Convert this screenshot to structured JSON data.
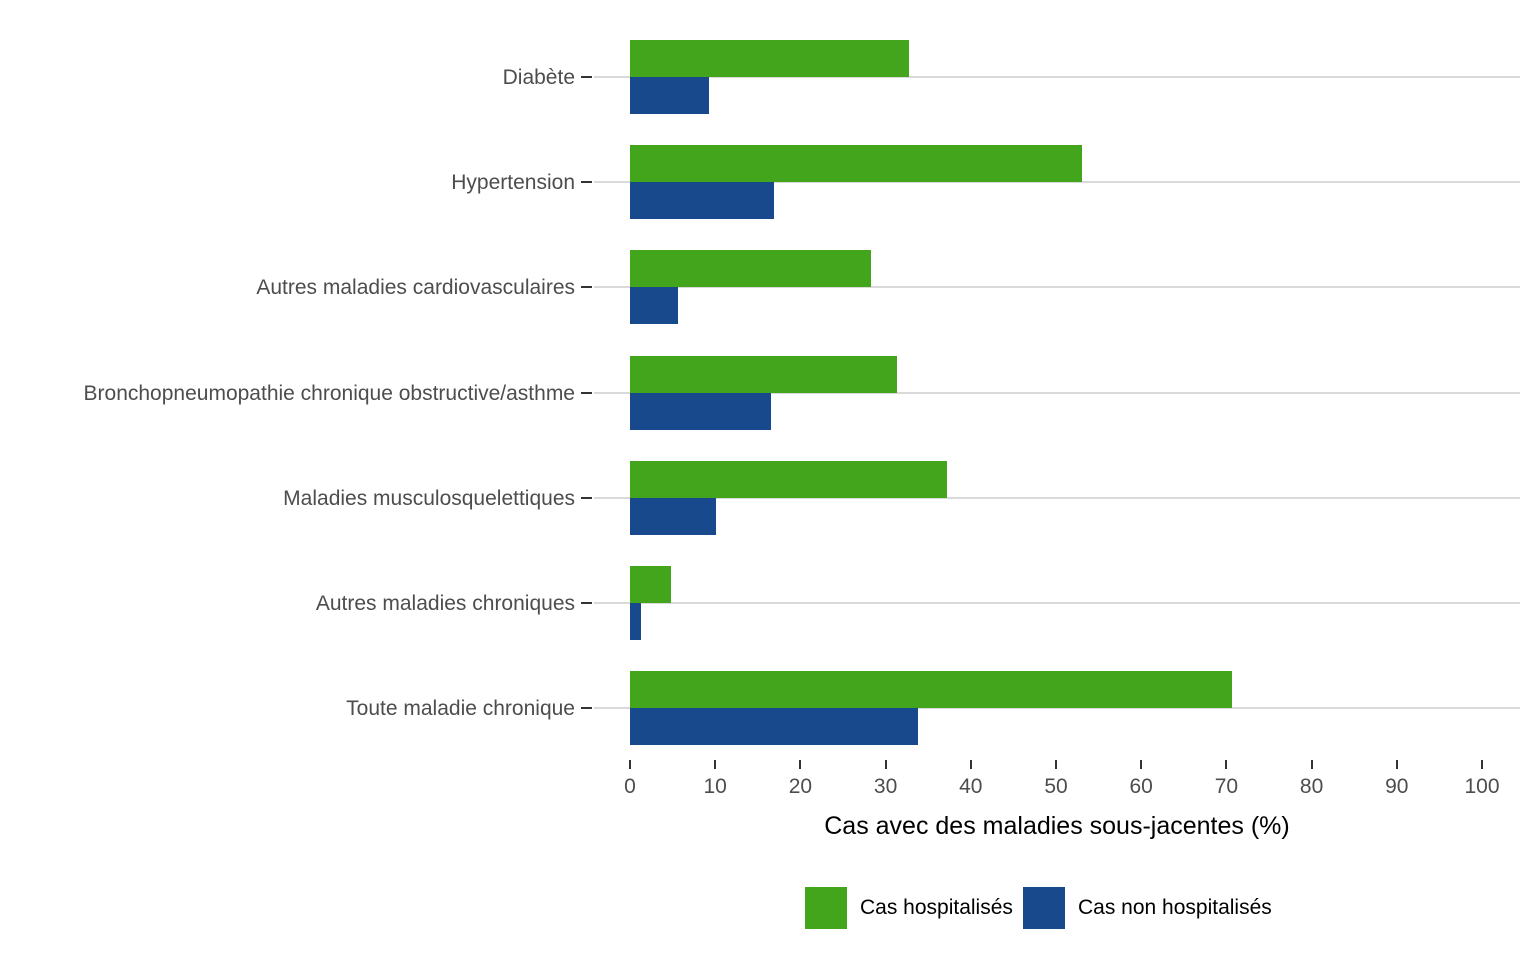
{
  "chart_data": {
    "type": "bar",
    "orientation": "horizontal",
    "title": "",
    "xlabel": "Cas avec des maladies sous-jacentes (%)",
    "ylabel": "",
    "xlim": [
      0,
      105
    ],
    "xticks": [
      0,
      10,
      20,
      30,
      40,
      50,
      60,
      70,
      80,
      90,
      100
    ],
    "grid": "horizontal gridline at each category center only",
    "legend_position": "bottom",
    "categories": [
      "Diabète",
      "Hypertension",
      "Autres maladies cardiovasculaires",
      "Bronchopneumopathie chronique obstructive/asthme",
      "Maladies musculosquelettiques",
      "Autres maladies chroniques",
      "Toute maladie chronique"
    ],
    "series": [
      {
        "name": "Cas hospitalisés",
        "color": "#43a51c",
        "values": [
          32.7,
          53.0,
          28.3,
          31.3,
          37.2,
          4.8,
          70.6
        ]
      },
      {
        "name": "Cas non hospitalisés",
        "color": "#17498c",
        "values": [
          9.3,
          16.9,
          5.6,
          16.6,
          10.1,
          1.3,
          33.8
        ]
      }
    ],
    "colors": {
      "grid": "#d9d9d9",
      "tick_mark": "#333333",
      "axis_text": "#4d4d4d",
      "axis_title": "#000000",
      "legend_text": "#000000",
      "background": "#ffffff"
    }
  }
}
